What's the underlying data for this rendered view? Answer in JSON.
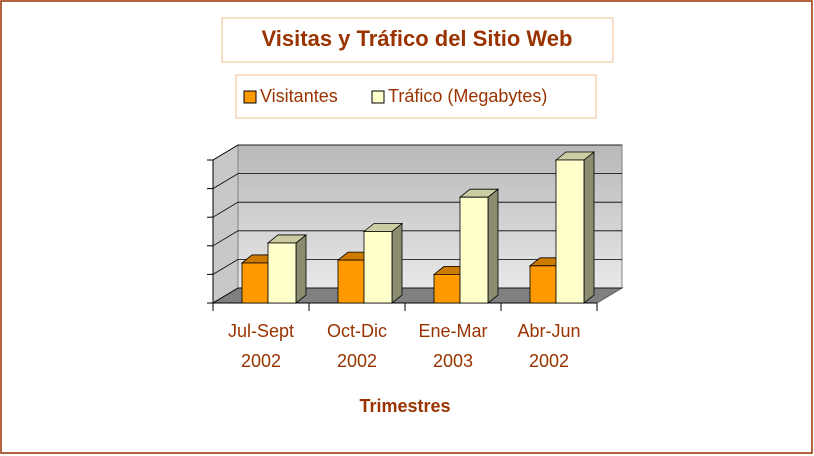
{
  "chart_data": {
    "type": "bar3d",
    "title": "Visitas y Tráfico del Sitio Web",
    "x_label": "Trimestres",
    "categories": [
      "Jul-Sept 2002",
      "Oct-Dic 2002",
      "Ene-Mar 2003",
      "Abr-Jun 2002"
    ],
    "series": [
      {
        "name": "Visitantes",
        "color": "#ff9900",
        "values": [
          1.4,
          1.5,
          1.0,
          1.3
        ]
      },
      {
        "name": "Tráfico (Megabytes)",
        "color": "#ffffcc",
        "values": [
          2.1,
          2.5,
          3.7,
          5.0
        ]
      }
    ],
    "ylim": [
      0,
      5
    ],
    "yticks": [
      0,
      1,
      2,
      3,
      4,
      5
    ],
    "grid": true
  }
}
